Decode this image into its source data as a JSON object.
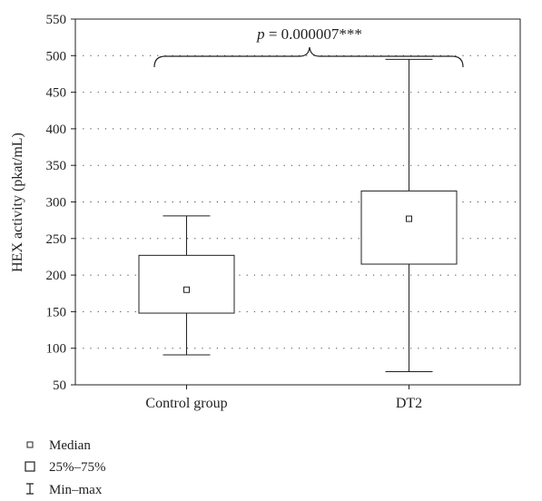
{
  "chart_data": {
    "type": "box",
    "ylabel": "HEX activity (pkat/mL)",
    "ylim": [
      50,
      550
    ],
    "yticks": [
      50,
      100,
      150,
      200,
      250,
      300,
      350,
      400,
      450,
      500,
      550
    ],
    "grid": "horizontal-dotted",
    "categories": [
      "Control group",
      "DT2"
    ],
    "boxes": [
      {
        "category": "Control group",
        "min": 91,
        "q1": 148,
        "median": 180,
        "q3": 227,
        "max": 281
      },
      {
        "category": "DT2",
        "min": 68,
        "q1": 215,
        "median": 277,
        "q3": 315,
        "max": 495
      }
    ],
    "annotation": {
      "prefix": "p",
      "text": " = 0.000007***"
    },
    "legend": {
      "placement": "bottom-left",
      "entries": [
        {
          "symbol": "small-square",
          "label": "Median"
        },
        {
          "symbol": "square",
          "label": "25%–75%"
        },
        {
          "symbol": "whisker",
          "label": "Min–max"
        }
      ]
    }
  }
}
